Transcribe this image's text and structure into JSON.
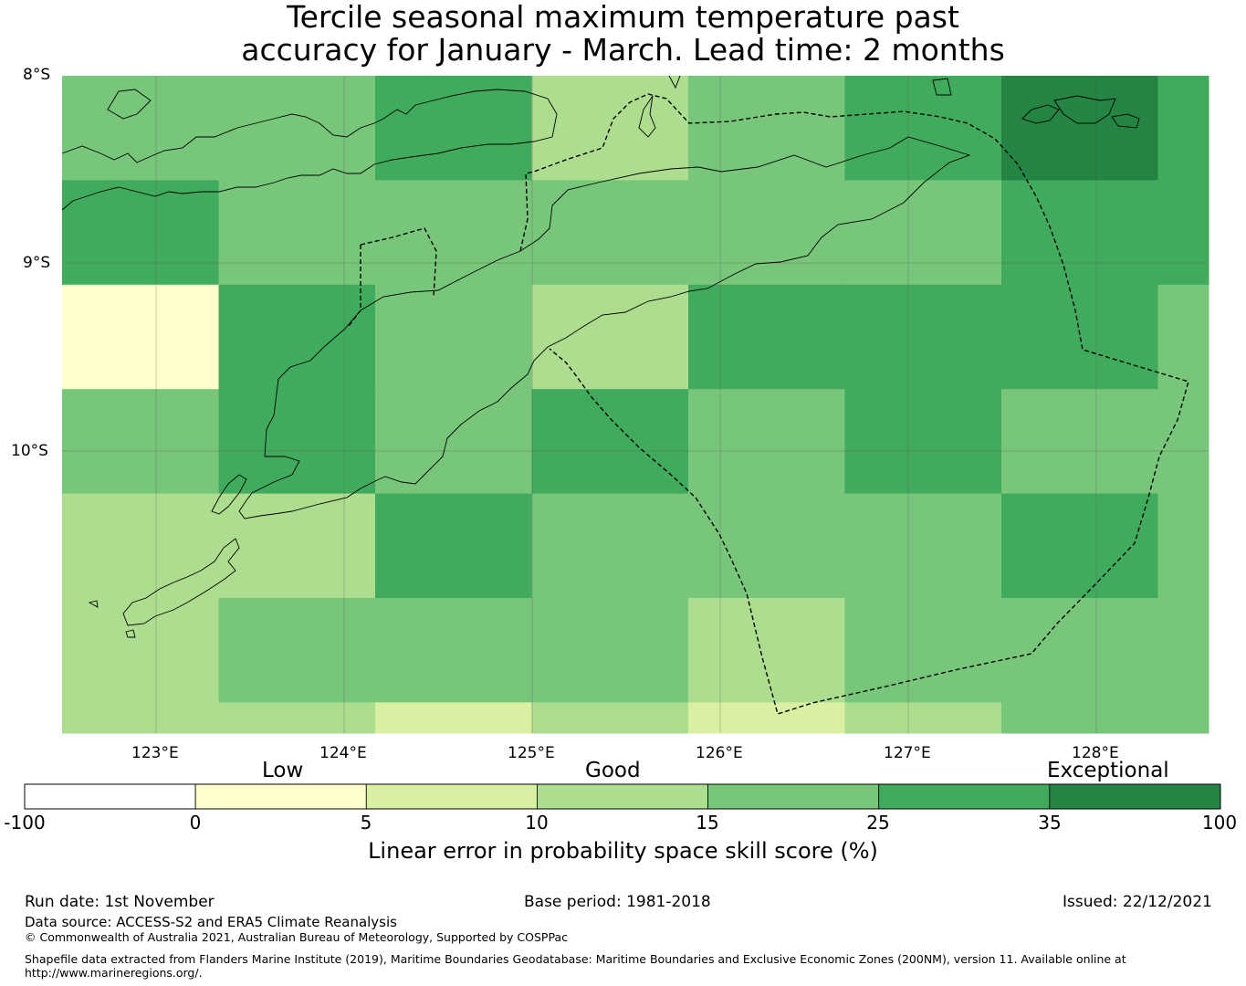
{
  "title_line1": "Tercile seasonal maximum temperature past",
  "title_line2": "accuracy for January - March. Lead time: 2 months",
  "lat_labels": [
    "8°S",
    "9°S",
    "10°S"
  ],
  "lon_labels": [
    "123°E",
    "124°E",
    "125°E",
    "126°E",
    "127°E",
    "128°E"
  ],
  "map": {
    "lon_range": [
      122.5,
      128.6
    ],
    "lat_range": [
      -8.0,
      -11.5
    ],
    "cell_size_deg": [
      0.833,
      0.556
    ],
    "grid_columns": 8,
    "grid_rows": 7,
    "grid_cell_classes": [
      [
        4,
        4,
        5,
        3,
        4,
        5,
        6,
        5
      ],
      [
        5,
        4,
        4,
        4,
        4,
        4,
        5,
        5
      ],
      [
        1,
        5,
        4,
        3,
        5,
        5,
        5,
        4
      ],
      [
        4,
        5,
        4,
        5,
        4,
        5,
        4,
        4
      ],
      [
        3,
        3,
        5,
        4,
        4,
        4,
        5,
        4
      ],
      [
        3,
        4,
        4,
        4,
        3,
        4,
        4,
        4
      ],
      [
        3,
        3,
        2,
        3,
        2,
        3,
        4,
        4
      ]
    ]
  },
  "colorbar": {
    "category_labels": [
      "Low",
      "Good",
      "Exceptional"
    ],
    "ticks": [
      "-100",
      "0",
      "5",
      "10",
      "15",
      "25",
      "35",
      "100"
    ],
    "colors": [
      "#ffffff",
      "#ffffcc",
      "#d9f0a3",
      "#addd8e",
      "#78c679",
      "#41ab5d",
      "#238443"
    ],
    "label": "Linear error in probability space skill score (%)"
  },
  "footer": {
    "run_date": "Run date: 1st November",
    "base_period": "Base period: 1981-2018",
    "issued": "Issued: 22/12/2021",
    "data_source": "Data source: ACCESS-S2 and ERA5 Climate Reanalysis",
    "copyright": "© Commonwealth of Australia 2021, Australian Bureau of Meteorology, Supported by COSPPac",
    "shapefile_line1": "Shapefile data extracted from Flanders Marine Institute (2019), Maritime Boundaries Geodatabase: Maritime Boundaries and Exclusive Economic Zones (200NM), version 11. Available online at",
    "shapefile_line2": "http://www.marineregions.org/."
  }
}
